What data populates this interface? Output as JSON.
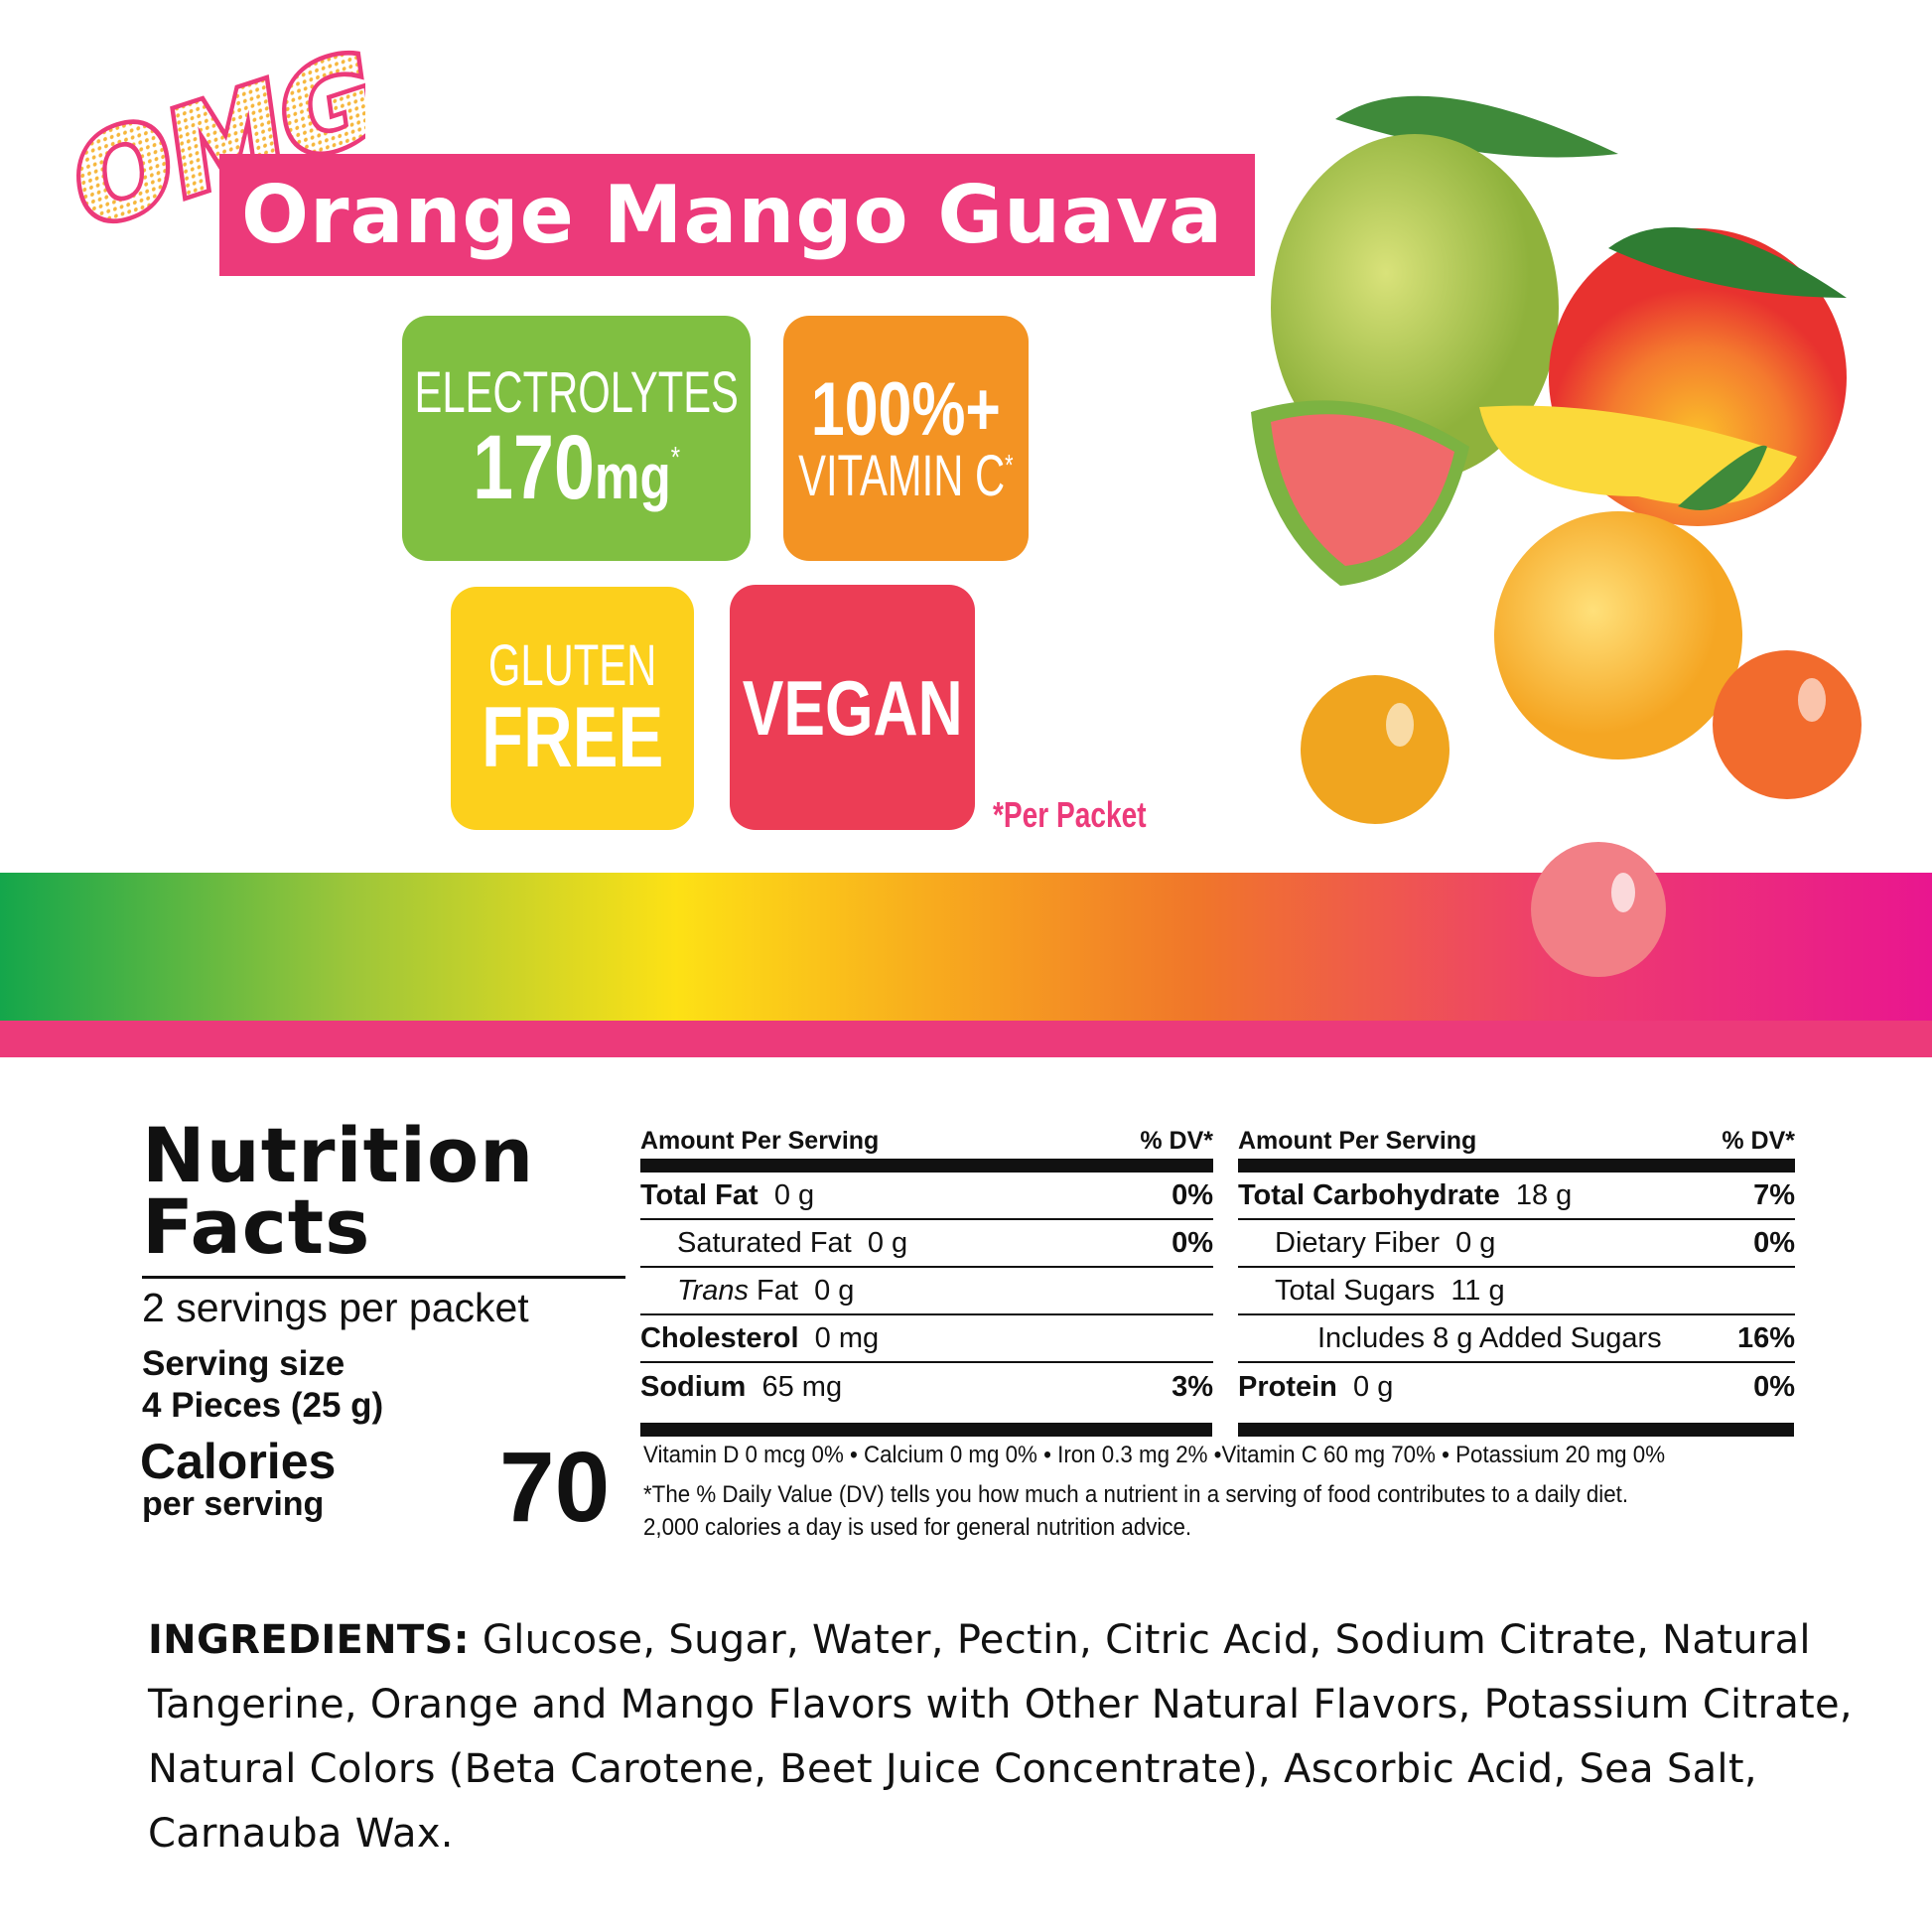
{
  "brand": {
    "logo_text": "OMG!",
    "flavor_title": "Orange Mango Guava"
  },
  "badges": {
    "electrolytes": {
      "label": "ELECTROLYTES",
      "value": "170",
      "unit": "mg",
      "mark": "*"
    },
    "vitamin_c": {
      "value": "100%+",
      "label": "VITAMIN C",
      "mark": "*"
    },
    "gluten_free": {
      "line1": "GLUTEN",
      "line2": "FREE"
    },
    "vegan": {
      "label": "VEGAN"
    },
    "footnote": "*Per Packet"
  },
  "colors": {
    "pink": "#ec3a7a",
    "green": "#80bf41",
    "orange": "#f39323",
    "yellow": "#fcd01c",
    "red": "#ec3d55"
  },
  "nutrition": {
    "title_line1": "Nutrition",
    "title_line2": "Facts",
    "servings": "2 servings per packet",
    "serving_size_label": "Serving size",
    "serving_size_value": "4 Pieces (25 g)",
    "calories_label": "Calories",
    "calories_sub": "per serving",
    "calories_value": "70",
    "header_amount": "Amount Per Serving",
    "header_dv": "% DV*",
    "left_rows": [
      {
        "name": "Total Fat",
        "amount": "0 g",
        "dv": "0%"
      },
      {
        "name": "Saturated Fat",
        "amount": "0 g",
        "dv": "0%"
      },
      {
        "name": "Trans",
        "name_rest": " Fat",
        "amount": "0 g",
        "dv": ""
      },
      {
        "name": "Cholesterol",
        "amount": "0 mg",
        "dv": ""
      },
      {
        "name": "Sodium",
        "amount": "65 mg",
        "dv": "3%"
      }
    ],
    "right_rows": [
      {
        "name": "Total Carbohydrate",
        "amount": "18 g",
        "dv": "7%"
      },
      {
        "name": "Dietary Fiber",
        "amount": "0 g",
        "dv": "0%"
      },
      {
        "name": "Total Sugars",
        "amount": "11 g",
        "dv": ""
      },
      {
        "name": "Includes 8 g Added Sugars",
        "amount": "",
        "dv": "16%"
      },
      {
        "name": "Protein",
        "amount": "0 g",
        "dv": "0%"
      }
    ],
    "vitamins": "Vitamin D 0 mcg  0% • Calcium 0 mg  0% • Iron 0.3 mg  2% •Vitamin C 60 mg 70% • Potassium 20 mg  0%",
    "footnote_line1": "*The % Daily Value (DV) tells you how much a nutrient in a serving of food contributes to a daily diet.",
    "footnote_line2": "2,000 calories a day is used for general nutrition advice."
  },
  "ingredients": {
    "label": "INGREDIENTS:",
    "text": " Glucose, Sugar, Water, Pectin, Citric Acid, Sodium Citrate, Natural Tangerine, Orange and Mango Flavors with Other Natural Flavors, Potassium Citrate, Natural Colors (Beta Carotene, Beet Juice Concentrate), Ascorbic Acid, Sea Salt, Carnauba Wax."
  }
}
